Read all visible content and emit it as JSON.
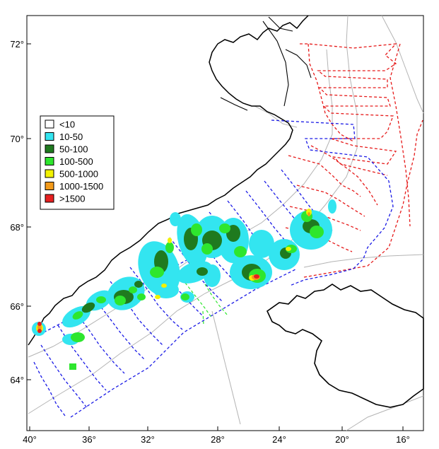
{
  "map": {
    "lon_ticks": [
      "40°",
      "36°",
      "32°",
      "28°",
      "24°",
      "20°",
      "16°"
    ],
    "lat_ticks": [
      "72°",
      "70°",
      "68°",
      "66°",
      "64°"
    ],
    "legend": [
      {
        "label": "<10",
        "color": "#ffffff"
      },
      {
        "label": "10-50",
        "color": "#33e5f0"
      },
      {
        "label": "50-100",
        "color": "#1f7a1f"
      },
      {
        "label": "100-500",
        "color": "#2ee62e"
      },
      {
        "label": "500-1000",
        "color": "#f2f200"
      },
      {
        "label": "1000-1500",
        "color": "#f29a1a"
      },
      {
        "label": ">1500",
        "color": "#e62020"
      }
    ],
    "colors": {
      "coast": "#000000",
      "isobath": "#b4b4b4",
      "track_blue": "#1a1ae6",
      "track_red": "#e61a1a",
      "track_green": "#2ee62e"
    }
  }
}
